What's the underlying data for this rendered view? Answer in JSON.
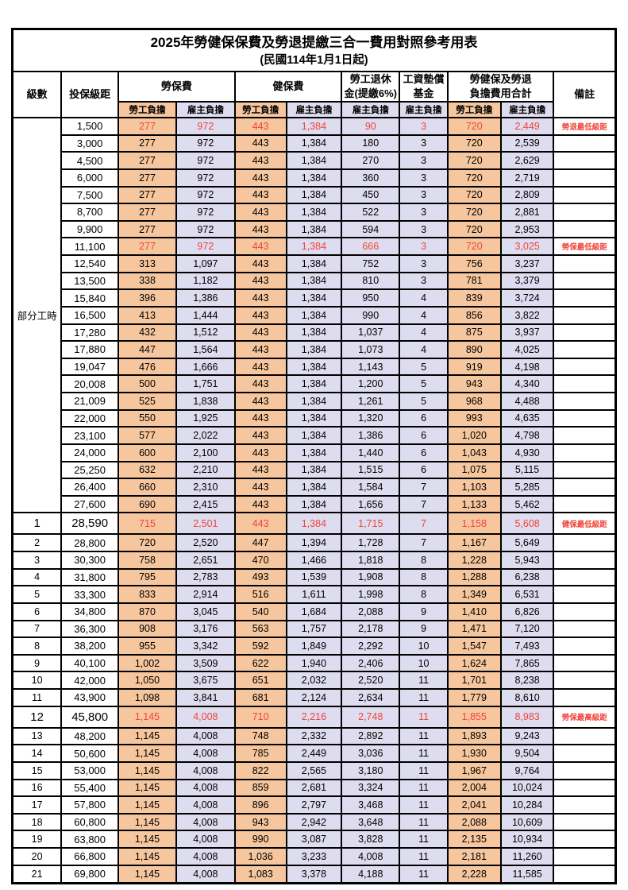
{
  "title": "2025年勞健保保費及勞退提繳三合一費用對照參考用表",
  "subtitle": "(民國114年1月1日起)",
  "colors": {
    "employee_column_bg": "#F6C79E",
    "employer_column_bg": "#DEDCEF",
    "highlight_text": "#F0453C",
    "border": "#000000"
  },
  "header": {
    "level": "級數",
    "bracket": "投保級距",
    "labor_insurance": "勞保費",
    "health_insurance": "健保費",
    "pension_line1": "勞工退休",
    "pension_line2": "金(提繳6%)",
    "wage_fund_line1": "工資墊償",
    "wage_fund_line2": "基金",
    "total_line1": "勞健保及勞退",
    "total_line2": "負擔費用合計",
    "note": "備註",
    "employee_share": "勞工負擔",
    "employer_share": "雇主負擔"
  },
  "table": {
    "part_time_label": "部分工時",
    "part_time_span": 23,
    "value_column_types": [
      "emp",
      "er",
      "emp",
      "er",
      "er",
      "er",
      "emp",
      "er"
    ],
    "rows": [
      {
        "level": "",
        "bracket": "1,500",
        "values": [
          "277",
          "972",
          "443",
          "1,384",
          "90",
          "3",
          "720",
          "2,449"
        ],
        "note": "勞退最低級距",
        "red": true,
        "big": false
      },
      {
        "level": "",
        "bracket": "3,000",
        "values": [
          "277",
          "972",
          "443",
          "1,384",
          "180",
          "3",
          "720",
          "2,539"
        ],
        "note": "",
        "red": false,
        "big": false
      },
      {
        "level": "",
        "bracket": "4,500",
        "values": [
          "277",
          "972",
          "443",
          "1,384",
          "270",
          "3",
          "720",
          "2,629"
        ],
        "note": "",
        "red": false,
        "big": false
      },
      {
        "level": "",
        "bracket": "6,000",
        "values": [
          "277",
          "972",
          "443",
          "1,384",
          "360",
          "3",
          "720",
          "2,719"
        ],
        "note": "",
        "red": false,
        "big": false
      },
      {
        "level": "",
        "bracket": "7,500",
        "values": [
          "277",
          "972",
          "443",
          "1,384",
          "450",
          "3",
          "720",
          "2,809"
        ],
        "note": "",
        "red": false,
        "big": false
      },
      {
        "level": "",
        "bracket": "8,700",
        "values": [
          "277",
          "972",
          "443",
          "1,384",
          "522",
          "3",
          "720",
          "2,881"
        ],
        "note": "",
        "red": false,
        "big": false
      },
      {
        "level": "",
        "bracket": "9,900",
        "values": [
          "277",
          "972",
          "443",
          "1,384",
          "594",
          "3",
          "720",
          "2,953"
        ],
        "note": "",
        "red": false,
        "big": false
      },
      {
        "level": "",
        "bracket": "11,100",
        "values": [
          "277",
          "972",
          "443",
          "1,384",
          "666",
          "3",
          "720",
          "3,025"
        ],
        "note": "勞保最低級距",
        "red": true,
        "big": false
      },
      {
        "level": "",
        "bracket": "12,540",
        "values": [
          "313",
          "1,097",
          "443",
          "1,384",
          "752",
          "3",
          "756",
          "3,237"
        ],
        "note": "",
        "red": false,
        "big": false
      },
      {
        "level": "",
        "bracket": "13,500",
        "values": [
          "338",
          "1,182",
          "443",
          "1,384",
          "810",
          "3",
          "781",
          "3,379"
        ],
        "note": "",
        "red": false,
        "big": false
      },
      {
        "level": "",
        "bracket": "15,840",
        "values": [
          "396",
          "1,386",
          "443",
          "1,384",
          "950",
          "4",
          "839",
          "3,724"
        ],
        "note": "",
        "red": false,
        "big": false
      },
      {
        "level": "",
        "bracket": "16,500",
        "values": [
          "413",
          "1,444",
          "443",
          "1,384",
          "990",
          "4",
          "856",
          "3,822"
        ],
        "note": "",
        "red": false,
        "big": false
      },
      {
        "level": "",
        "bracket": "17,280",
        "values": [
          "432",
          "1,512",
          "443",
          "1,384",
          "1,037",
          "4",
          "875",
          "3,937"
        ],
        "note": "",
        "red": false,
        "big": false
      },
      {
        "level": "",
        "bracket": "17,880",
        "values": [
          "447",
          "1,564",
          "443",
          "1,384",
          "1,073",
          "4",
          "890",
          "4,025"
        ],
        "note": "",
        "red": false,
        "big": false
      },
      {
        "level": "",
        "bracket": "19,047",
        "values": [
          "476",
          "1,666",
          "443",
          "1,384",
          "1,143",
          "5",
          "919",
          "4,198"
        ],
        "note": "",
        "red": false,
        "big": false
      },
      {
        "level": "",
        "bracket": "20,008",
        "values": [
          "500",
          "1,751",
          "443",
          "1,384",
          "1,200",
          "5",
          "943",
          "4,340"
        ],
        "note": "",
        "red": false,
        "big": false
      },
      {
        "level": "",
        "bracket": "21,009",
        "values": [
          "525",
          "1,838",
          "443",
          "1,384",
          "1,261",
          "5",
          "968",
          "4,488"
        ],
        "note": "",
        "red": false,
        "big": false
      },
      {
        "level": "",
        "bracket": "22,000",
        "values": [
          "550",
          "1,925",
          "443",
          "1,384",
          "1,320",
          "6",
          "993",
          "4,635"
        ],
        "note": "",
        "red": false,
        "big": false
      },
      {
        "level": "",
        "bracket": "23,100",
        "values": [
          "577",
          "2,022",
          "443",
          "1,384",
          "1,386",
          "6",
          "1,020",
          "4,798"
        ],
        "note": "",
        "red": false,
        "big": false
      },
      {
        "level": "",
        "bracket": "24,000",
        "values": [
          "600",
          "2,100",
          "443",
          "1,384",
          "1,440",
          "6",
          "1,043",
          "4,930"
        ],
        "note": "",
        "red": false,
        "big": false
      },
      {
        "level": "",
        "bracket": "25,250",
        "values": [
          "632",
          "2,210",
          "443",
          "1,384",
          "1,515",
          "6",
          "1,075",
          "5,115"
        ],
        "note": "",
        "red": false,
        "big": false
      },
      {
        "level": "",
        "bracket": "26,400",
        "values": [
          "660",
          "2,310",
          "443",
          "1,384",
          "1,584",
          "7",
          "1,103",
          "5,285"
        ],
        "note": "",
        "red": false,
        "big": false
      },
      {
        "level": "",
        "bracket": "27,600",
        "values": [
          "690",
          "2,415",
          "443",
          "1,384",
          "1,656",
          "7",
          "1,133",
          "5,462"
        ],
        "note": "",
        "red": false,
        "big": false
      },
      {
        "level": "1",
        "bracket": "28,590",
        "values": [
          "715",
          "2,501",
          "443",
          "1,384",
          "1,715",
          "7",
          "1,158",
          "5,608"
        ],
        "note": "健保最低級距",
        "red": true,
        "big": true
      },
      {
        "level": "2",
        "bracket": "28,800",
        "values": [
          "720",
          "2,520",
          "447",
          "1,394",
          "1,728",
          "7",
          "1,167",
          "5,649"
        ],
        "note": "",
        "red": false,
        "big": false
      },
      {
        "level": "3",
        "bracket": "30,300",
        "values": [
          "758",
          "2,651",
          "470",
          "1,466",
          "1,818",
          "8",
          "1,228",
          "5,943"
        ],
        "note": "",
        "red": false,
        "big": false
      },
      {
        "level": "4",
        "bracket": "31,800",
        "values": [
          "795",
          "2,783",
          "493",
          "1,539",
          "1,908",
          "8",
          "1,288",
          "6,238"
        ],
        "note": "",
        "red": false,
        "big": false
      },
      {
        "level": "5",
        "bracket": "33,300",
        "values": [
          "833",
          "2,914",
          "516",
          "1,611",
          "1,998",
          "8",
          "1,349",
          "6,531"
        ],
        "note": "",
        "red": false,
        "big": false
      },
      {
        "level": "6",
        "bracket": "34,800",
        "values": [
          "870",
          "3,045",
          "540",
          "1,684",
          "2,088",
          "9",
          "1,410",
          "6,826"
        ],
        "note": "",
        "red": false,
        "big": false
      },
      {
        "level": "7",
        "bracket": "36,300",
        "values": [
          "908",
          "3,176",
          "563",
          "1,757",
          "2,178",
          "9",
          "1,471",
          "7,120"
        ],
        "note": "",
        "red": false,
        "big": false
      },
      {
        "level": "8",
        "bracket": "38,200",
        "values": [
          "955",
          "3,342",
          "592",
          "1,849",
          "2,292",
          "10",
          "1,547",
          "7,493"
        ],
        "note": "",
        "red": false,
        "big": false
      },
      {
        "level": "9",
        "bracket": "40,100",
        "values": [
          "1,002",
          "3,509",
          "622",
          "1,940",
          "2,406",
          "10",
          "1,624",
          "7,865"
        ],
        "note": "",
        "red": false,
        "big": false
      },
      {
        "level": "10",
        "bracket": "42,000",
        "values": [
          "1,050",
          "3,675",
          "651",
          "2,032",
          "2,520",
          "11",
          "1,701",
          "8,238"
        ],
        "note": "",
        "red": false,
        "big": false
      },
      {
        "level": "11",
        "bracket": "43,900",
        "values": [
          "1,098",
          "3,841",
          "681",
          "2,124",
          "2,634",
          "11",
          "1,779",
          "8,610"
        ],
        "note": "",
        "red": false,
        "big": false
      },
      {
        "level": "12",
        "bracket": "45,800",
        "values": [
          "1,145",
          "4,008",
          "710",
          "2,216",
          "2,748",
          "11",
          "1,855",
          "8,983"
        ],
        "note": "勞保最高級距",
        "red": true,
        "big": true
      },
      {
        "level": "13",
        "bracket": "48,200",
        "values": [
          "1,145",
          "4,008",
          "748",
          "2,332",
          "2,892",
          "11",
          "1,893",
          "9,243"
        ],
        "note": "",
        "red": false,
        "big": false
      },
      {
        "level": "14",
        "bracket": "50,600",
        "values": [
          "1,145",
          "4,008",
          "785",
          "2,449",
          "3,036",
          "11",
          "1,930",
          "9,504"
        ],
        "note": "",
        "red": false,
        "big": false
      },
      {
        "level": "15",
        "bracket": "53,000",
        "values": [
          "1,145",
          "4,008",
          "822",
          "2,565",
          "3,180",
          "11",
          "1,967",
          "9,764"
        ],
        "note": "",
        "red": false,
        "big": false
      },
      {
        "level": "16",
        "bracket": "55,400",
        "values": [
          "1,145",
          "4,008",
          "859",
          "2,681",
          "3,324",
          "11",
          "2,004",
          "10,024"
        ],
        "note": "",
        "red": false,
        "big": false
      },
      {
        "level": "17",
        "bracket": "57,800",
        "values": [
          "1,145",
          "4,008",
          "896",
          "2,797",
          "3,468",
          "11",
          "2,041",
          "10,284"
        ],
        "note": "",
        "red": false,
        "big": false
      },
      {
        "level": "18",
        "bracket": "60,800",
        "values": [
          "1,145",
          "4,008",
          "943",
          "2,942",
          "3,648",
          "11",
          "2,088",
          "10,609"
        ],
        "note": "",
        "red": false,
        "big": false
      },
      {
        "level": "19",
        "bracket": "63,800",
        "values": [
          "1,145",
          "4,008",
          "990",
          "3,087",
          "3,828",
          "11",
          "2,135",
          "10,934"
        ],
        "note": "",
        "red": false,
        "big": false
      },
      {
        "level": "20",
        "bracket": "66,800",
        "values": [
          "1,145",
          "4,008",
          "1,036",
          "3,233",
          "4,008",
          "11",
          "2,181",
          "11,260"
        ],
        "note": "",
        "red": false,
        "big": false
      },
      {
        "level": "21",
        "bracket": "69,800",
        "values": [
          "1,145",
          "4,008",
          "1,083",
          "3,378",
          "4,188",
          "11",
          "2,228",
          "11,585"
        ],
        "note": "",
        "red": false,
        "big": false
      }
    ]
  }
}
